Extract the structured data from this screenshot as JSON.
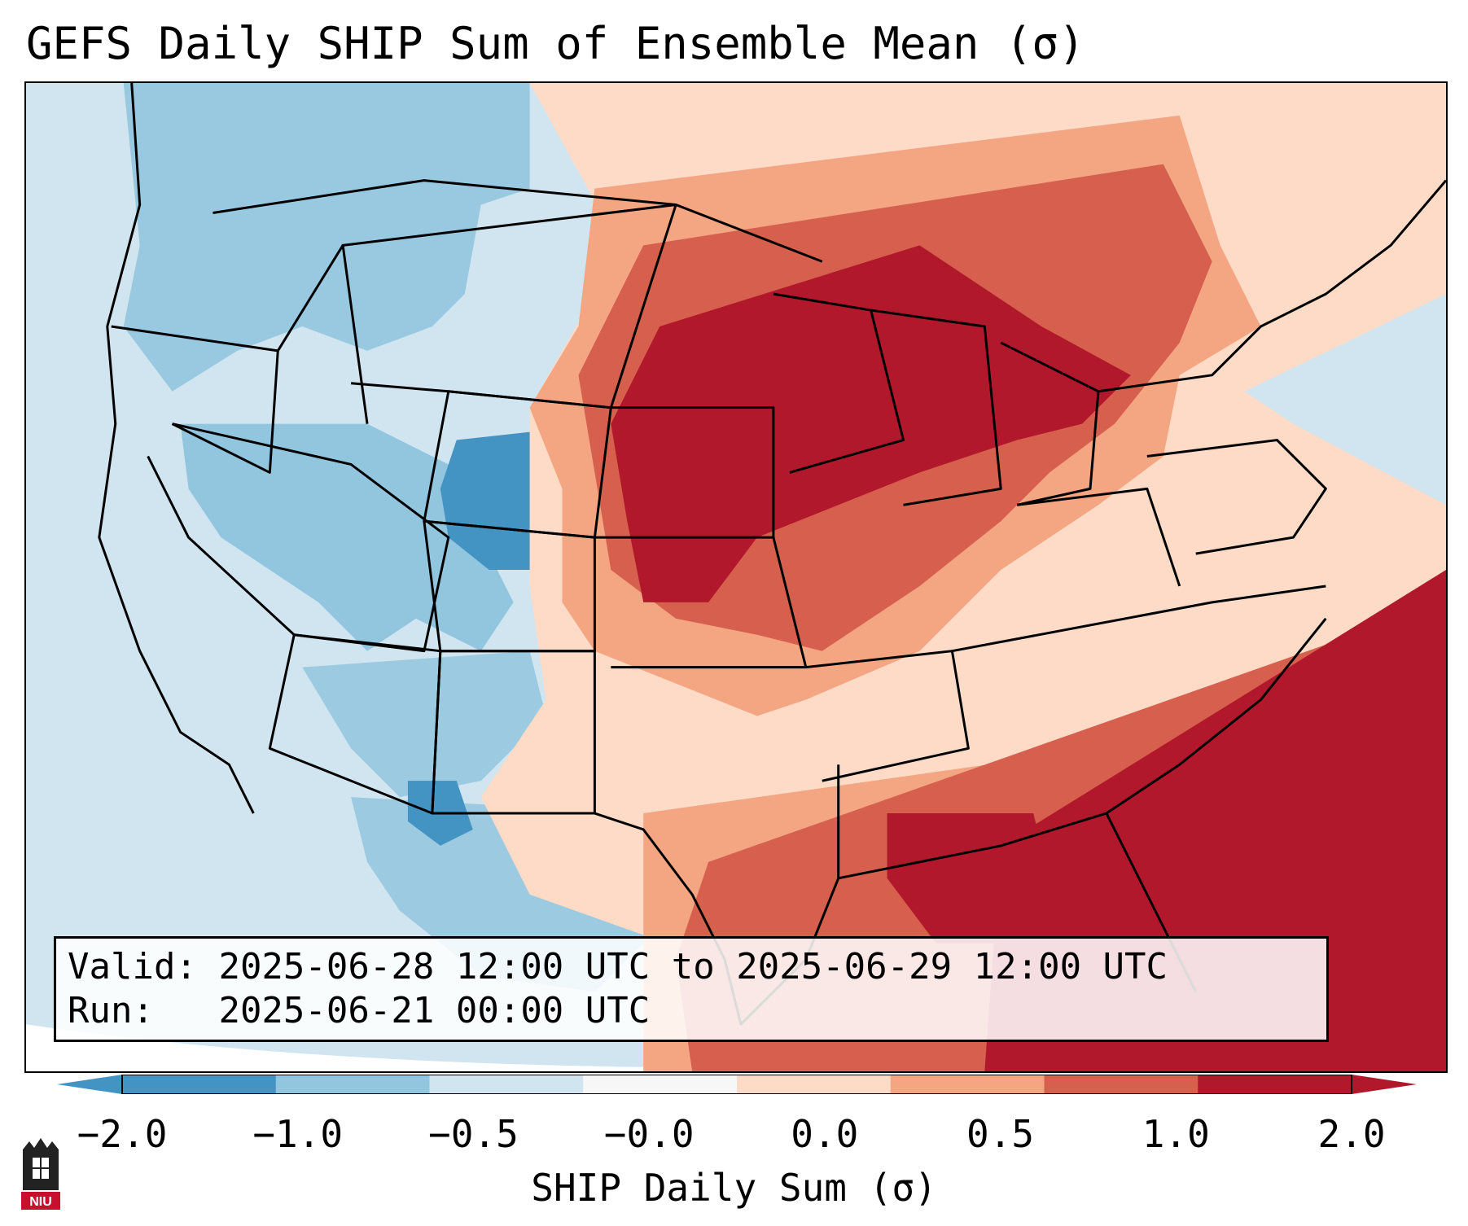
{
  "title": "GEFS Daily SHIP Sum of Ensemble Mean (σ)",
  "info": {
    "valid_label": "Valid:",
    "valid_value": "2025-06-28 12:00 UTC to 2025-06-29 12:00 UTC",
    "run_label": "Run:",
    "run_value": "2025-06-21 00:00 UTC"
  },
  "colorbar": {
    "label": "SHIP Daily Sum (σ)",
    "ticks": [
      "−2.0",
      "−1.0",
      "−0.5",
      "−0.0",
      "0.0",
      "0.5",
      "1.0",
      "2.0"
    ],
    "colors": [
      "#4393c3",
      "#92c5de",
      "#d1e5f0",
      "#f7f7f7",
      "#fddbc7",
      "#f4a582",
      "#d6604d",
      "#b2182b"
    ],
    "extend": "both"
  },
  "map": {
    "region": "Contiguous United States",
    "projection": "Lambert Conformal",
    "background_color": "#d1e5f0",
    "border_color": "#000000"
  },
  "logo": {
    "text": "NIU",
    "color": "#c8102e"
  }
}
